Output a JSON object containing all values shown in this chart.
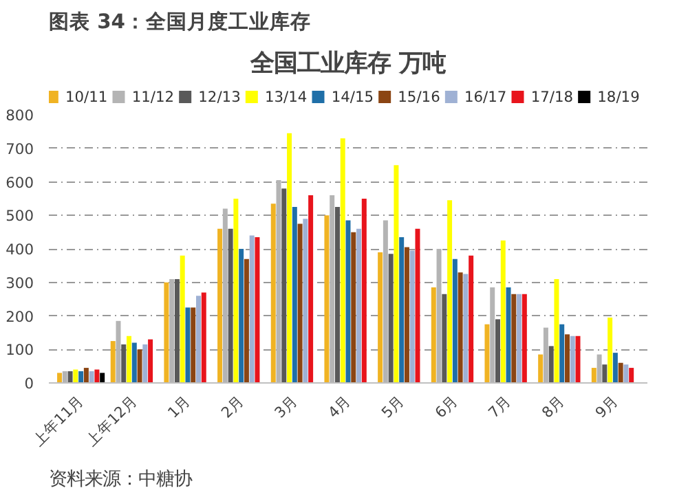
{
  "chart_data": {
    "type": "bar",
    "title": "图表 34：全国月度工业库存",
    "subtitle": "全国工业库存 万吨",
    "categories": [
      "上年11月",
      "上年12月",
      "1月",
      "2月",
      "3月",
      "4月",
      "5月",
      "6月",
      "7月",
      "8月",
      "9月"
    ],
    "series": [
      {
        "name": "10/11",
        "color": "#f0b323",
        "values": [
          30,
          125,
          300,
          460,
          535,
          500,
          390,
          285,
          175,
          85,
          45
        ]
      },
      {
        "name": "11/12",
        "color": "#b4b4b4",
        "values": [
          35,
          185,
          310,
          520,
          605,
          560,
          485,
          400,
          285,
          165,
          85
        ]
      },
      {
        "name": "12/13",
        "color": "#595959",
        "values": [
          35,
          115,
          310,
          460,
          580,
          525,
          385,
          265,
          190,
          110,
          55
        ]
      },
      {
        "name": "13/14",
        "color": "#ffff00",
        "values": [
          40,
          140,
          380,
          550,
          745,
          730,
          650,
          545,
          425,
          310,
          195
        ]
      },
      {
        "name": "14/15",
        "color": "#1f6fa8",
        "values": [
          35,
          120,
          225,
          400,
          525,
          485,
          435,
          370,
          285,
          175,
          90
        ]
      },
      {
        "name": "15/16",
        "color": "#8b4513",
        "values": [
          45,
          100,
          225,
          370,
          475,
          450,
          405,
          330,
          265,
          145,
          60
        ]
      },
      {
        "name": "16/17",
        "color": "#9fb1d4",
        "values": [
          35,
          115,
          260,
          440,
          490,
          460,
          395,
          325,
          265,
          140,
          55
        ]
      },
      {
        "name": "17/18",
        "color": "#e8141c",
        "values": [
          40,
          130,
          270,
          435,
          560,
          550,
          460,
          380,
          265,
          140,
          45
        ]
      },
      {
        "name": "18/19",
        "color": "#000000",
        "values": [
          30,
          null,
          null,
          null,
          null,
          null,
          null,
          null,
          null,
          null,
          null
        ]
      }
    ],
    "ylim": [
      0,
      800
    ],
    "yticks": [
      0,
      100,
      200,
      300,
      400,
      500,
      600,
      700,
      800
    ],
    "grid": "y",
    "legend": "top",
    "annotations": [
      "资料来源：中糖协"
    ]
  }
}
